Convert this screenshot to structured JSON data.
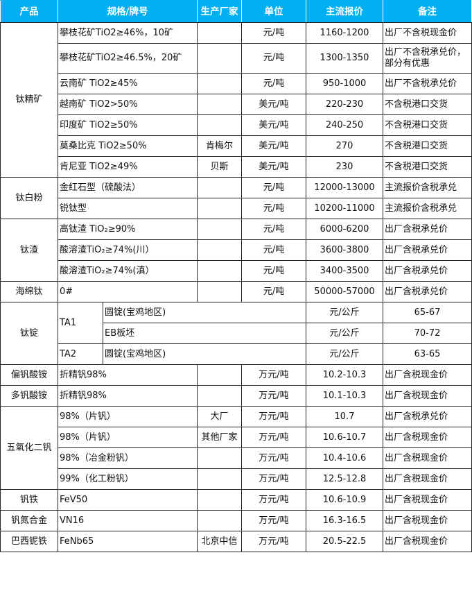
{
  "header": {
    "product": "产品",
    "spec": "规格/牌号",
    "maker": "生产厂家",
    "unit": "单位",
    "price": "主流报价",
    "note": "备注"
  },
  "header_color": "#00b0f0",
  "groups": [
    {
      "product": "钛精矿",
      "rows": [
        {
          "spec": "攀枝花矿TiO2≥46%，10矿",
          "maker": "",
          "unit": "元/吨",
          "price": "1160-1200",
          "note": "出厂不含税现金价"
        },
        {
          "spec": "攀枝花矿TiO2≥46.5%，20矿",
          "maker": "",
          "unit": "元/吨",
          "price": "1300-1350",
          "note": "出厂不含税承兑价，部分有优惠",
          "tall": true
        },
        {
          "spec": "云南矿 TiO2≥45%",
          "maker": "",
          "unit": "元/吨",
          "price": "950-1000",
          "note": "出厂不含税承兑价"
        },
        {
          "spec": "越南矿 TiO2>50%",
          "maker": "",
          "unit": "美元/吨",
          "price": "220-230",
          "note": "不含税港口交货"
        },
        {
          "spec": "印度矿 TiO2≥50%",
          "maker": "",
          "unit": "美元/吨",
          "price": "240-250",
          "note": "不含税港口交货"
        },
        {
          "spec": "莫桑比克 TiO2≥50%",
          "maker": "肯梅尔",
          "unit": "美元/吨",
          "price": "270",
          "note": "不含税港口交货"
        },
        {
          "spec": "肯尼亚 TiO2≥49%",
          "maker": "贝斯",
          "unit": "美元/吨",
          "price": "230",
          "note": "不含税港口交货"
        }
      ]
    },
    {
      "product": "钛白粉",
      "rows": [
        {
          "spec": "金红石型（硫酸法）",
          "maker": "",
          "unit": "元/吨",
          "price": "12000-13000",
          "note": "主流报价含税承兑"
        },
        {
          "spec": "锐钛型",
          "maker": "",
          "unit": "元/吨",
          "price": "10200-11000",
          "note": "主流报价含税承兑"
        }
      ]
    },
    {
      "product": "钛渣",
      "rows": [
        {
          "spec": "高钛渣 TiO₂≥90%",
          "maker": "",
          "unit": "元/吨",
          "price": "6000-6200",
          "note": "出厂含税承兑价"
        },
        {
          "spec": "酸溶渣TiO₂≥74%(川）",
          "maker": "",
          "unit": "元/吨",
          "price": "3600-3800",
          "note": "出厂含税承兑价"
        },
        {
          "spec": "酸溶渣TiO₂≥74%(滇）",
          "maker": "",
          "unit": "元/吨",
          "price": "3400-3500",
          "note": "出厂含税承兑价"
        }
      ]
    },
    {
      "product": "海绵钛",
      "rows": [
        {
          "spec": "0#",
          "maker": "",
          "unit": "元/吨",
          "price": "50000-57000",
          "note": "出厂含税承兑价"
        }
      ]
    },
    {
      "product": "钛锭",
      "rows": [
        {
          "grade": "TA1",
          "spec": "圆锭(宝鸡地区)",
          "unit": "元/公斤",
          "price": "65-67",
          "note": "出厂含税承兑价"
        },
        {
          "grade": "TA1",
          "spec": "EB板坯",
          "unit": "元/公斤",
          "price": "70-72",
          "note": "出厂含税承兑价"
        },
        {
          "grade": "TA2",
          "spec": "圆锭(宝鸡地区)",
          "unit": "元/公斤",
          "price": "63-65",
          "note": "出厂含税承兑价"
        }
      ]
    },
    {
      "product": "偏钒酸铵",
      "rows": [
        {
          "spec": "折精钒98%",
          "maker": "",
          "unit": "万元/吨",
          "price": "10.2-10.3",
          "note": "出厂含税现金价"
        }
      ]
    },
    {
      "product": "多钒酸铵",
      "rows": [
        {
          "spec": "折精钒98%",
          "maker": "",
          "unit": "万元/吨",
          "price": "10.1-10.3",
          "note": "出厂含税现金价"
        }
      ]
    },
    {
      "product": "五氧化二钒",
      "rows": [
        {
          "spec": "98%（片钒）",
          "maker": "大厂",
          "unit": "万元/吨",
          "price": "10.7",
          "note": "出厂含税承兑价"
        },
        {
          "spec": "98%（片钒）",
          "maker": "其他厂家",
          "unit": "万元/吨",
          "price": "10.6-10.7",
          "note": "出厂含税现金价"
        },
        {
          "spec": "98%（冶金粉钒）",
          "maker": "",
          "unit": "万元/吨",
          "price": "10.4-10.6",
          "note": "出厂含税现金价"
        },
        {
          "spec": "99%（化工粉钒）",
          "maker": "",
          "unit": "万元/吨",
          "price": "12.5-12.8",
          "note": "出厂含税现金价"
        }
      ]
    },
    {
      "product": "钒铁",
      "rows": [
        {
          "spec": "FeV50",
          "maker": "",
          "unit": "万元/吨",
          "price": "10.6-10.9",
          "note": "出厂含税现金价"
        }
      ]
    },
    {
      "product": "钒氮合金",
      "rows": [
        {
          "spec": "VN16",
          "maker": "",
          "unit": "万元/吨",
          "price": "16.3-16.5",
          "note": "出厂含税现金价"
        }
      ]
    },
    {
      "product": "巴西铌铁",
      "rows": [
        {
          "spec": "FeNb65",
          "maker": "北京中信",
          "unit": "万元/吨",
          "price": "20.5-22.5",
          "note": "出厂含税现金价"
        }
      ]
    }
  ]
}
